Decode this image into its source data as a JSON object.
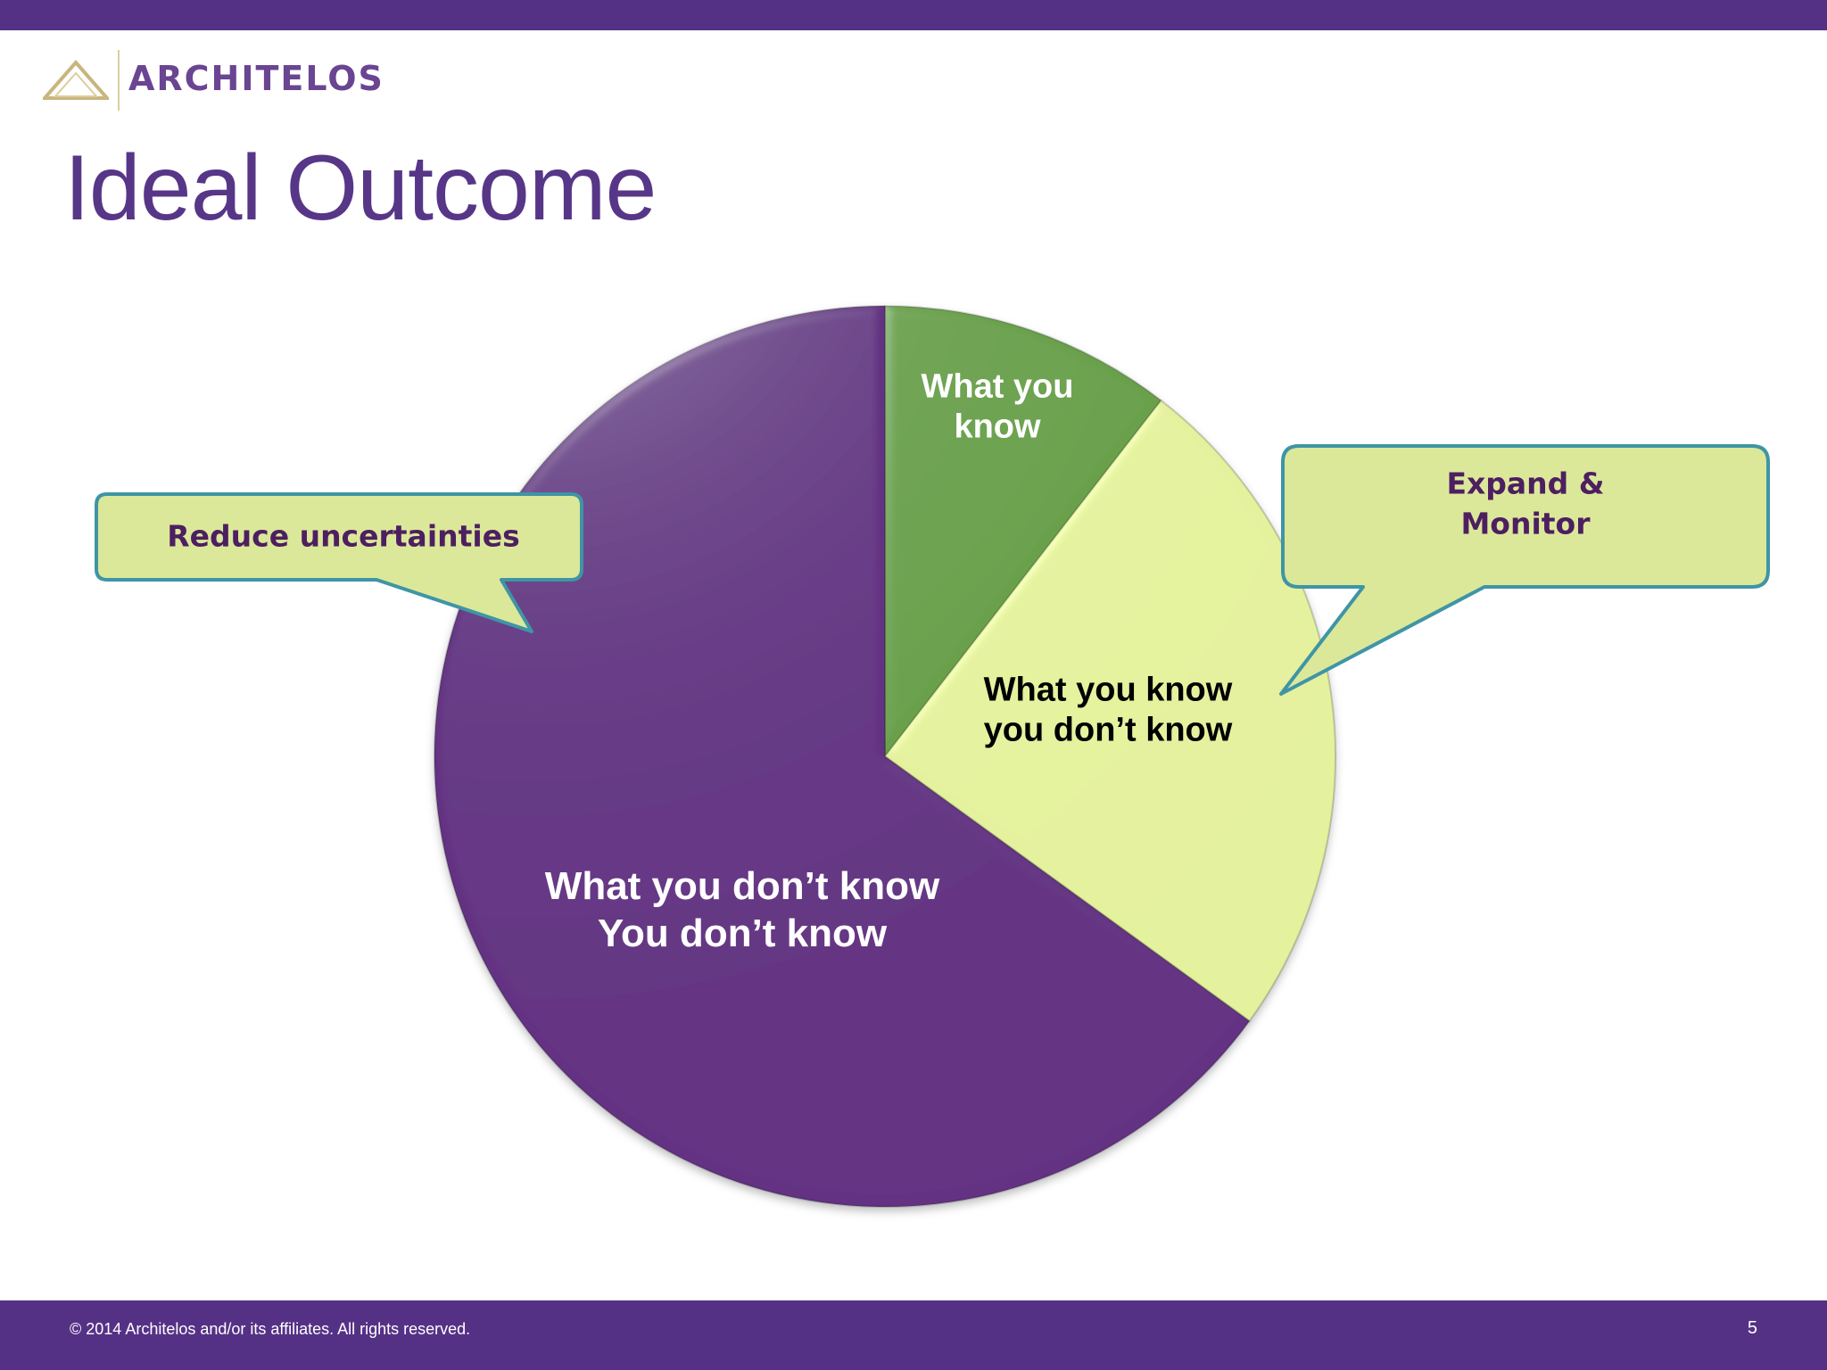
{
  "brand": {
    "name": "ARCHITELOS"
  },
  "slide": {
    "title": "Ideal Outcome",
    "page_number": "5"
  },
  "footer": {
    "copyright": "© 2014 Architelos and/or its affiliates. All rights reserved."
  },
  "colors": {
    "brand_purple": "#553186",
    "title_purple": "#573688",
    "slice_dark_purple": "#633283",
    "slice_green": "#69a04a",
    "slice_light_green": "#e4f19d",
    "callout_fill": "#dbe89a",
    "callout_border": "#3f95a5",
    "callout_text": "#4d1f60"
  },
  "chart_data": {
    "type": "pie",
    "start_angle_deg": 0,
    "direction": "clockwise",
    "slices": [
      {
        "label_lines": [
          "What you",
          "know"
        ],
        "value": 10.5,
        "color": "#69a04a",
        "label_color": "#ffffff"
      },
      {
        "label_lines": [
          "What you know",
          "you don’t know"
        ],
        "value": 24.5,
        "color": "#e4f19d",
        "label_color": "#000000"
      },
      {
        "label_lines": [
          "What you don’t know",
          "You don’t know"
        ],
        "value": 65,
        "color": "#633283",
        "label_color": "#ffffff"
      }
    ]
  },
  "callouts": [
    {
      "text_lines": [
        "Reduce uncertainties"
      ]
    },
    {
      "text_lines": [
        "Expand &",
        "Monitor"
      ]
    }
  ]
}
